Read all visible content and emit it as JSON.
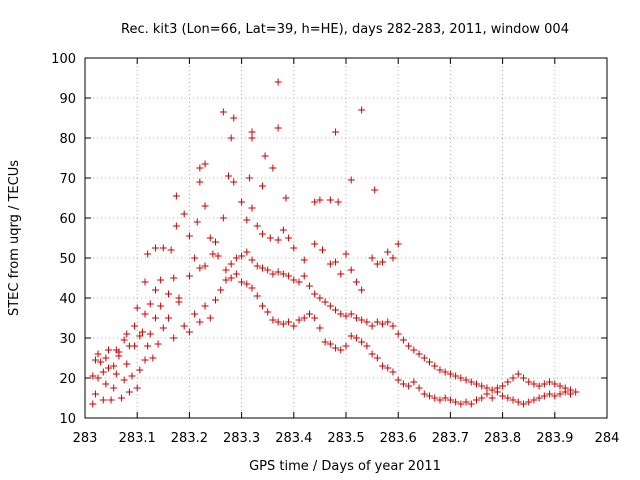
{
  "chart_data": {
    "type": "scatter",
    "title": "Rec. kit3 (Lon=66, Lat=39, h=HE), days 282-283, 2011, window 004",
    "xlabel": "GPS time / Days of year 2011",
    "ylabel": "STEC from uqrg / TECUs",
    "xlim": [
      283,
      284
    ],
    "ylim": [
      10,
      100
    ],
    "xticks": [
      283,
      283.1,
      283.2,
      283.3,
      283.4,
      283.5,
      283.6,
      283.7,
      283.8,
      283.9,
      284
    ],
    "xtick_labels": [
      "283",
      "283.1",
      "283.2",
      "283.3",
      "283.4",
      "283.5",
      "283.6",
      "283.7",
      "283.8",
      "283.9",
      "284"
    ],
    "yticks": [
      10,
      20,
      30,
      40,
      50,
      60,
      70,
      80,
      90,
      100
    ],
    "ytick_labels": [
      "10",
      "20",
      "30",
      "40",
      "50",
      "60",
      "70",
      "80",
      "90",
      "100"
    ],
    "marker": "+",
    "color": "#cc0000",
    "series": [
      {
        "name": "STEC",
        "points": [
          [
            283.015,
            13.5
          ],
          [
            283.02,
            16.0
          ],
          [
            283.025,
            20.0
          ],
          [
            283.03,
            24.0
          ],
          [
            283.035,
            14.5
          ],
          [
            283.04,
            18.5
          ],
          [
            283.045,
            22.5
          ],
          [
            283.05,
            14.5
          ],
          [
            283.055,
            17.5
          ],
          [
            283.06,
            21.0
          ],
          [
            283.065,
            25.5
          ],
          [
            283.07,
            15.0
          ],
          [
            283.075,
            19.5
          ],
          [
            283.08,
            23.5
          ],
          [
            283.085,
            16.5
          ],
          [
            283.09,
            20.5
          ],
          [
            283.095,
            28.0
          ],
          [
            283.1,
            17.5
          ],
          [
            283.105,
            22.0
          ],
          [
            283.11,
            31.5
          ],
          [
            283.115,
            24.5
          ],
          [
            283.12,
            28.0
          ],
          [
            283.125,
            31.0
          ],
          [
            283.13,
            25.0
          ],
          [
            283.135,
            35.0
          ],
          [
            283.14,
            28.5
          ],
          [
            283.145,
            38.0
          ],
          [
            283.15,
            32.5
          ],
          [
            283.16,
            35.0
          ],
          [
            283.17,
            30.0
          ],
          [
            283.18,
            40.0
          ],
          [
            283.19,
            33.0
          ],
          [
            283.2,
            31.5
          ],
          [
            283.21,
            36.0
          ],
          [
            283.22,
            34.0
          ],
          [
            283.23,
            38.0
          ],
          [
            283.24,
            35.0
          ],
          [
            283.25,
            39.5
          ],
          [
            283.26,
            42.0
          ],
          [
            283.27,
            44.5
          ],
          [
            283.28,
            45.0
          ],
          [
            283.29,
            46.0
          ],
          [
            283.3,
            44.0
          ],
          [
            283.31,
            43.5
          ],
          [
            283.32,
            42.5
          ],
          [
            283.33,
            40.5
          ],
          [
            283.34,
            38.0
          ],
          [
            283.35,
            36.5
          ],
          [
            283.36,
            34.5
          ],
          [
            283.37,
            34.0
          ],
          [
            283.38,
            33.5
          ],
          [
            283.39,
            34.0
          ],
          [
            283.4,
            33.0
          ],
          [
            283.41,
            34.5
          ],
          [
            283.42,
            35.0
          ],
          [
            283.43,
            36.0
          ],
          [
            283.44,
            35.0
          ],
          [
            283.45,
            32.5
          ],
          [
            283.46,
            29.0
          ],
          [
            283.47,
            28.5
          ],
          [
            283.48,
            27.5
          ],
          [
            283.49,
            27.0
          ],
          [
            283.5,
            28.0
          ],
          [
            283.51,
            30.5
          ],
          [
            283.52,
            30.0
          ],
          [
            283.53,
            29.0
          ],
          [
            283.54,
            28.0
          ],
          [
            283.55,
            26.0
          ],
          [
            283.56,
            25.0
          ],
          [
            283.57,
            23.0
          ],
          [
            283.58,
            22.5
          ],
          [
            283.59,
            21.5
          ],
          [
            283.6,
            19.5
          ],
          [
            283.61,
            18.5
          ],
          [
            283.62,
            18.0
          ],
          [
            283.63,
            19.0
          ],
          [
            283.64,
            17.5
          ],
          [
            283.65,
            16.0
          ],
          [
            283.66,
            15.5
          ],
          [
            283.67,
            15.0
          ],
          [
            283.68,
            14.5
          ],
          [
            283.69,
            15.0
          ],
          [
            283.7,
            14.5
          ],
          [
            283.71,
            14.0
          ],
          [
            283.72,
            13.5
          ],
          [
            283.73,
            14.0
          ],
          [
            283.74,
            13.5
          ],
          [
            283.75,
            14.5
          ],
          [
            283.76,
            15.0
          ],
          [
            283.77,
            16.0
          ],
          [
            283.78,
            15.0
          ],
          [
            283.79,
            16.5
          ],
          [
            283.8,
            15.5
          ],
          [
            283.81,
            15.0
          ],
          [
            283.82,
            14.5
          ],
          [
            283.83,
            14.0
          ],
          [
            283.84,
            13.5
          ],
          [
            283.85,
            14.0
          ],
          [
            283.86,
            14.5
          ],
          [
            283.87,
            15.0
          ],
          [
            283.88,
            15.5
          ],
          [
            283.89,
            16.0
          ],
          [
            283.9,
            15.5
          ],
          [
            283.91,
            16.0
          ],
          [
            283.92,
            16.5
          ],
          [
            283.93,
            16.0
          ],
          [
            283.94,
            16.5
          ],
          [
            283.015,
            20.5
          ],
          [
            283.025,
            26.0
          ],
          [
            283.035,
            21.5
          ],
          [
            283.045,
            27.0
          ],
          [
            283.055,
            23.0
          ],
          [
            283.065,
            26.5
          ],
          [
            283.075,
            29.5
          ],
          [
            283.085,
            28.0
          ],
          [
            283.095,
            33.0
          ],
          [
            283.105,
            30.5
          ],
          [
            283.115,
            36.0
          ],
          [
            283.125,
            38.5
          ],
          [
            283.135,
            42.0
          ],
          [
            283.145,
            44.5
          ],
          [
            283.16,
            41.0
          ],
          [
            283.17,
            45.0
          ],
          [
            283.18,
            39.0
          ],
          [
            283.2,
            45.5
          ],
          [
            283.21,
            50.0
          ],
          [
            283.22,
            47.5
          ],
          [
            283.23,
            48.0
          ],
          [
            283.245,
            51.0
          ],
          [
            283.255,
            50.5
          ],
          [
            283.27,
            47.0
          ],
          [
            283.28,
            48.5
          ],
          [
            283.29,
            50.0
          ],
          [
            283.3,
            50.5
          ],
          [
            283.31,
            51.5
          ],
          [
            283.32,
            49.5
          ],
          [
            283.33,
            48.0
          ],
          [
            283.34,
            47.5
          ],
          [
            283.35,
            47.0
          ],
          [
            283.36,
            46.0
          ],
          [
            283.37,
            46.5
          ],
          [
            283.38,
            46.0
          ],
          [
            283.39,
            45.5
          ],
          [
            283.4,
            44.5
          ],
          [
            283.41,
            44.0
          ],
          [
            283.42,
            45.5
          ],
          [
            283.43,
            43.0
          ],
          [
            283.44,
            41.0
          ],
          [
            283.45,
            40.0
          ],
          [
            283.46,
            39.0
          ],
          [
            283.47,
            38.0
          ],
          [
            283.48,
            37.0
          ],
          [
            283.49,
            36.0
          ],
          [
            283.5,
            35.5
          ],
          [
            283.51,
            36.0
          ],
          [
            283.52,
            35.0
          ],
          [
            283.53,
            34.5
          ],
          [
            283.54,
            34.0
          ],
          [
            283.55,
            33.0
          ],
          [
            283.56,
            34.0
          ],
          [
            283.57,
            33.5
          ],
          [
            283.58,
            34.0
          ],
          [
            283.59,
            33.0
          ],
          [
            283.6,
            31.0
          ],
          [
            283.61,
            29.5
          ],
          [
            283.62,
            28.0
          ],
          [
            283.63,
            27.0
          ],
          [
            283.64,
            26.0
          ],
          [
            283.65,
            25.0
          ],
          [
            283.66,
            24.0
          ],
          [
            283.67,
            23.0
          ],
          [
            283.68,
            22.0
          ],
          [
            283.69,
            21.5
          ],
          [
            283.7,
            21.0
          ],
          [
            283.71,
            20.5
          ],
          [
            283.72,
            20.0
          ],
          [
            283.73,
            19.5
          ],
          [
            283.74,
            19.0
          ],
          [
            283.75,
            18.5
          ],
          [
            283.76,
            18.0
          ],
          [
            283.77,
            17.5
          ],
          [
            283.78,
            17.0
          ],
          [
            283.79,
            17.5
          ],
          [
            283.8,
            18.0
          ],
          [
            283.81,
            19.0
          ],
          [
            283.82,
            20.0
          ],
          [
            283.83,
            21.0
          ],
          [
            283.84,
            20.0
          ],
          [
            283.85,
            19.0
          ],
          [
            283.86,
            18.5
          ],
          [
            283.87,
            18.0
          ],
          [
            283.88,
            18.5
          ],
          [
            283.89,
            19.0
          ],
          [
            283.9,
            18.5
          ],
          [
            283.91,
            18.0
          ],
          [
            283.92,
            17.5
          ],
          [
            283.93,
            17.0
          ],
          [
            283.02,
            24.5
          ],
          [
            283.04,
            25.0
          ],
          [
            283.06,
            27.0
          ],
          [
            283.08,
            31.0
          ],
          [
            283.1,
            37.5
          ],
          [
            283.115,
            44.0
          ],
          [
            283.12,
            51.0
          ],
          [
            283.135,
            52.5
          ],
          [
            283.15,
            52.5
          ],
          [
            283.165,
            52.0
          ],
          [
            283.175,
            58.0
          ],
          [
            283.19,
            61.0
          ],
          [
            283.2,
            55.5
          ],
          [
            283.215,
            59.0
          ],
          [
            283.22,
            69.0
          ],
          [
            283.23,
            63.0
          ],
          [
            283.24,
            55.0
          ],
          [
            283.25,
            54.0
          ],
          [
            283.265,
            60.0
          ],
          [
            283.275,
            70.5
          ],
          [
            283.285,
            69.0
          ],
          [
            283.3,
            64.0
          ],
          [
            283.31,
            59.5
          ],
          [
            283.32,
            62.5
          ],
          [
            283.33,
            58.0
          ],
          [
            283.34,
            56.0
          ],
          [
            283.355,
            55.0
          ],
          [
            283.37,
            54.5
          ],
          [
            283.38,
            57.0
          ],
          [
            283.39,
            55.0
          ],
          [
            283.4,
            52.5
          ],
          [
            283.42,
            49.5
          ],
          [
            283.44,
            53.5
          ],
          [
            283.455,
            52.0
          ],
          [
            283.47,
            48.5
          ],
          [
            283.48,
            49.0
          ],
          [
            283.49,
            46.0
          ],
          [
            283.5,
            51.0
          ],
          [
            283.51,
            47.0
          ],
          [
            283.52,
            44.0
          ],
          [
            283.53,
            42.0
          ],
          [
            283.55,
            50.0
          ],
          [
            283.56,
            48.5
          ],
          [
            283.57,
            49.0
          ],
          [
            283.58,
            51.5
          ],
          [
            283.59,
            50.0
          ],
          [
            283.6,
            53.5
          ],
          [
            283.22,
            72.5
          ],
          [
            283.23,
            73.5
          ],
          [
            283.265,
            86.5
          ],
          [
            283.28,
            80.0
          ],
          [
            283.285,
            85.0
          ],
          [
            283.32,
            81.5
          ],
          [
            283.32,
            80.0
          ],
          [
            283.345,
            75.5
          ],
          [
            283.36,
            72.5
          ],
          [
            283.37,
            94.0
          ],
          [
            283.37,
            82.5
          ],
          [
            283.385,
            65.0
          ],
          [
            283.44,
            64.0
          ],
          [
            283.45,
            64.5
          ],
          [
            283.47,
            64.5
          ],
          [
            283.48,
            81.5
          ],
          [
            283.485,
            64.0
          ],
          [
            283.51,
            69.5
          ],
          [
            283.53,
            87.0
          ],
          [
            283.555,
            67.0
          ],
          [
            283.315,
            70.0
          ],
          [
            283.34,
            68.0
          ],
          [
            283.175,
            65.5
          ]
        ]
      }
    ]
  }
}
